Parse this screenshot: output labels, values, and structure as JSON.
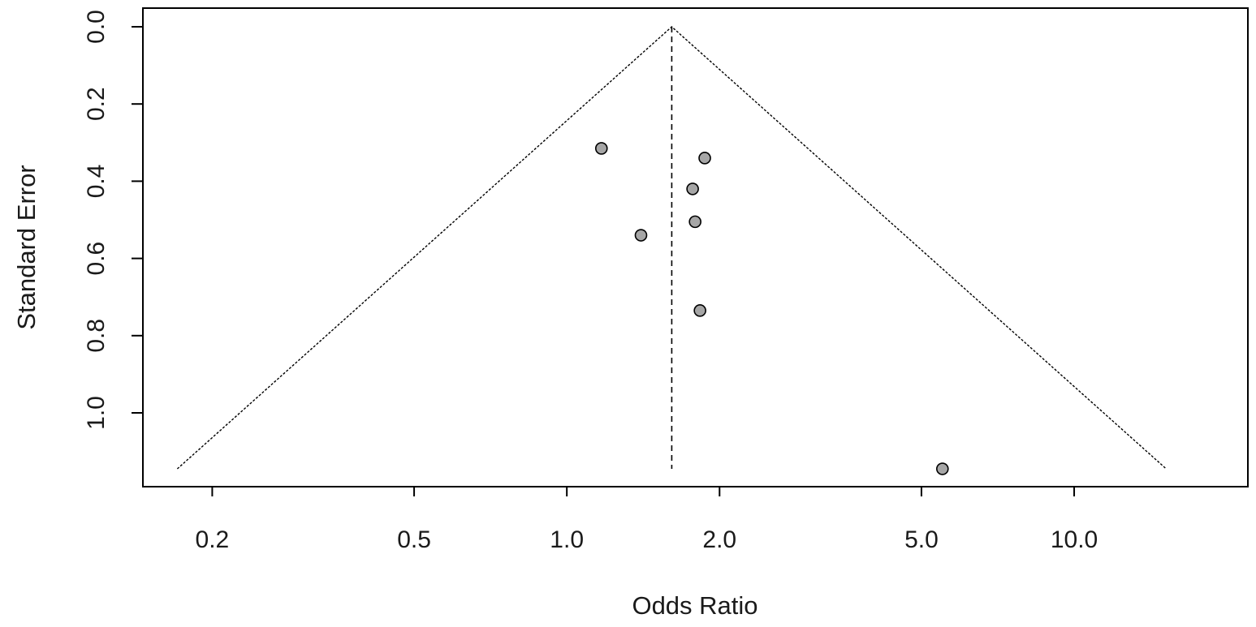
{
  "chart_data": {
    "type": "scatter",
    "subtype": "funnel-plot",
    "xlabel": "Odds Ratio",
    "ylabel": "Standard Error",
    "x_scale": "log",
    "y_reversed": true,
    "xlim": [
      0.146,
      22.0
    ],
    "ylim": [
      0.0,
      1.19
    ],
    "x_ticks": [
      0.2,
      0.5,
      1.0,
      2.0,
      5.0,
      10.0
    ],
    "x_tick_labels": [
      "0.2",
      "0.5",
      "1.0",
      "2.0",
      "5.0",
      "10.0"
    ],
    "y_ticks": [
      0.0,
      0.2,
      0.4,
      0.6,
      0.8,
      1.0
    ],
    "y_tick_labels": [
      "0.0",
      "0.2",
      "0.4",
      "0.6",
      "0.8",
      "1.0"
    ],
    "pooled_estimate": 1.61,
    "funnel_max_se": 1.145,
    "funnel_lines": "dashed",
    "grid": false,
    "legend": "none",
    "marker_color": "#a6a6a6",
    "points": [
      {
        "x": 1.17,
        "y": 0.315
      },
      {
        "x": 1.87,
        "y": 0.34
      },
      {
        "x": 1.77,
        "y": 0.42
      },
      {
        "x": 1.79,
        "y": 0.505
      },
      {
        "x": 1.4,
        "y": 0.54
      },
      {
        "x": 1.83,
        "y": 0.735
      },
      {
        "x": 5.5,
        "y": 1.145
      }
    ]
  }
}
